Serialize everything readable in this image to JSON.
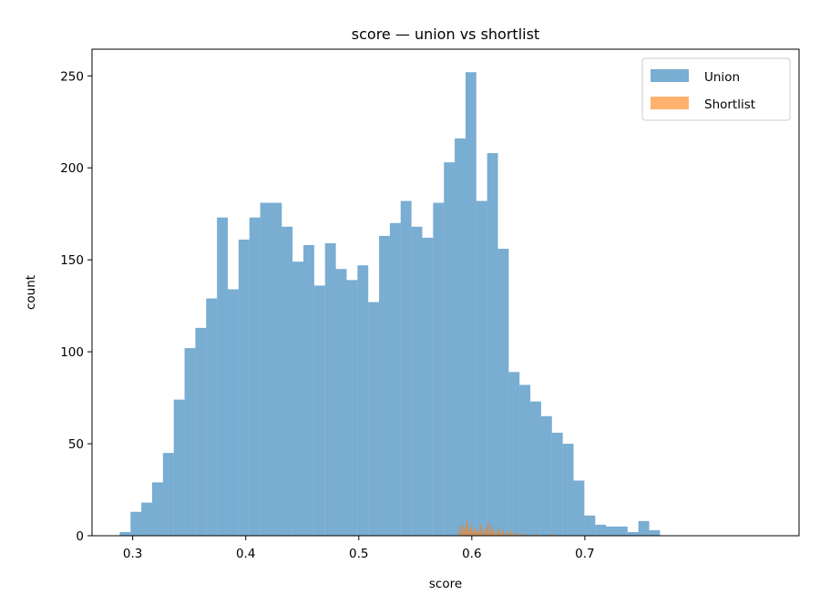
{
  "chart_data": {
    "type": "bar",
    "title": "score — union vs shortlist",
    "xlabel": "score",
    "ylabel": "count",
    "xlim": [
      0.264,
      0.8895
    ],
    "ylim": [
      0,
      264.5
    ],
    "xticks": [
      0.3,
      0.4,
      0.5,
      0.6,
      0.7
    ],
    "xtick_labels": [
      "0.3",
      "0.4",
      "0.5",
      "0.6",
      "0.7"
    ],
    "yticks": [
      0,
      50,
      100,
      150,
      200,
      250
    ],
    "ytick_labels": [
      "0",
      "50",
      "100",
      "150",
      "200",
      "250"
    ],
    "grid": false,
    "legend_position": "top-right",
    "series": [
      {
        "name": "Union",
        "color": "#1f77b4",
        "alpha": 0.6,
        "bin_start": 0.2885,
        "bin_width": 0.00956,
        "values": [
          2,
          13,
          18,
          29,
          45,
          74,
          102,
          113,
          129,
          173,
          134,
          161,
          173,
          181,
          181,
          168,
          149,
          158,
          136,
          159,
          145,
          139,
          147,
          127,
          163,
          170,
          182,
          168,
          162,
          181,
          203,
          216,
          252,
          182,
          208,
          156,
          89,
          82,
          73,
          65,
          56,
          50,
          30,
          11,
          6,
          5,
          5,
          2,
          8,
          3
        ]
      },
      {
        "name": "Shortlist",
        "color": "#ff7f0e",
        "alpha": 0.6,
        "bin_start": 0.5885,
        "bin_width": 0.00166,
        "values": [
          5,
          2,
          6,
          4,
          8,
          3,
          5,
          2,
          4,
          3,
          2,
          6,
          3,
          1,
          4,
          7,
          2,
          5,
          3,
          1,
          2,
          4,
          1,
          3,
          0,
          2,
          1,
          3,
          0,
          1,
          2,
          0,
          1,
          1,
          0,
          0,
          1,
          0,
          0,
          0,
          0,
          1,
          0,
          0,
          0,
          0,
          0,
          0,
          0,
          1
        ]
      }
    ]
  }
}
